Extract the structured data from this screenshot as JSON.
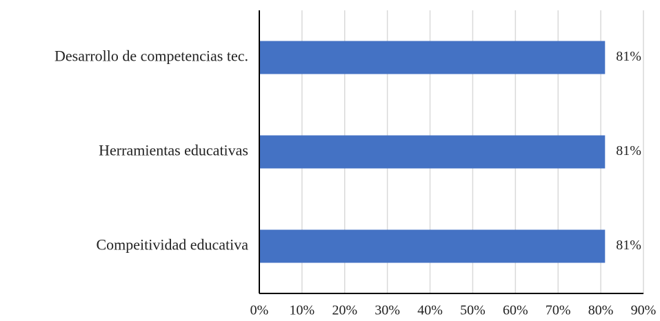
{
  "chart_data": {
    "type": "bar",
    "orientation": "horizontal",
    "categories": [
      "Desarrollo de competencias tec.",
      "Herramientas educativas",
      "Compeitividad educativa"
    ],
    "values": [
      81,
      81,
      81
    ],
    "data_labels": [
      "81%",
      "81%",
      "81%"
    ],
    "xlim": [
      0,
      90
    ],
    "x_ticks": [
      0,
      10,
      20,
      30,
      40,
      50,
      60,
      70,
      80,
      90
    ],
    "x_tick_labels": [
      "0%",
      "10%",
      "20%",
      "30%",
      "40%",
      "50%",
      "60%",
      "70%",
      "80%",
      "90%"
    ],
    "title": "",
    "xlabel": "",
    "ylabel": "",
    "grid": true,
    "legend": "none",
    "bar_color": "#4472C4",
    "grid_color": "#D9D9D9",
    "axis_color": "#000000"
  }
}
